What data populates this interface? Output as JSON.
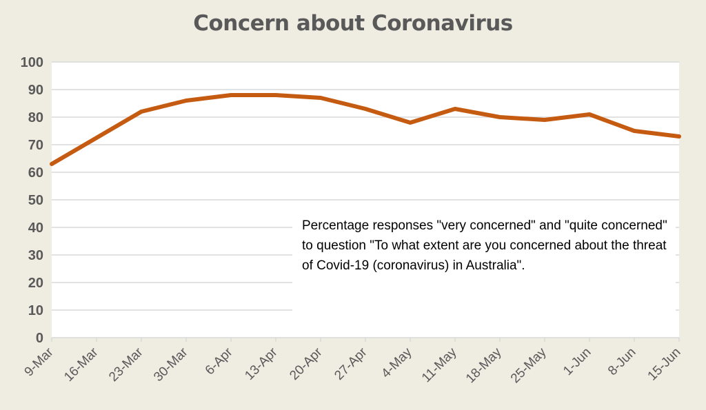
{
  "colors": {
    "background": "#efece2",
    "plot_area": "#ffffff",
    "gridline": "#d9d9d9",
    "line": "#c55a11",
    "text": "#595959"
  },
  "chart_data": {
    "type": "line",
    "title": "Concern about Coronavirus",
    "xlabel": "",
    "ylabel": "",
    "categories": [
      "9-Mar",
      "16-Mar",
      "23-Mar",
      "30-Mar",
      "6-Apr",
      "13-Apr",
      "20-Apr",
      "27-Apr",
      "4-May",
      "11-May",
      "18-May",
      "25-May",
      "1-Jun",
      "8-Jun",
      "15-Jun"
    ],
    "series": [
      {
        "values": [
          63,
          72.5,
          82,
          86,
          88,
          88,
          87,
          83,
          78,
          83,
          80,
          79,
          81,
          75,
          73
        ]
      }
    ],
    "ylim": [
      0,
      100
    ],
    "yticks": [
      0,
      10,
      20,
      30,
      40,
      50,
      60,
      70,
      80,
      90,
      100
    ],
    "grid": true,
    "legend": "none",
    "annotation": "Percentage responses \"very concerned\" and \"quite concerned\" to question \"To what extent are you concerned about the threat of Covid-19 (coronavirus) in Australia\"."
  }
}
